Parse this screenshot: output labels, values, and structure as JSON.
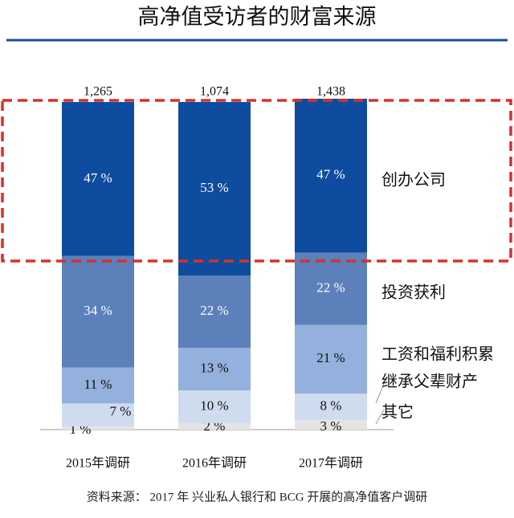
{
  "chart_data": {
    "type": "stacked_bar_100",
    "title": "高净值受访者的财富来源",
    "source": "资料来源： 2017 年 兴业私人银行和 BCG 开展的高净值客户调研",
    "categories": [
      "2015年调研",
      "2016年调研",
      "2017年调研"
    ],
    "totals": {
      "values": [
        1265,
        1074,
        1438
      ],
      "value_labels": [
        "1,265",
        "1,074",
        "1,438"
      ]
    },
    "ylim": [
      0,
      100
    ],
    "series": [
      {
        "name": "其它",
        "color": "#e4e4e4",
        "values": [
          1,
          2,
          3
        ],
        "value_labels": [
          "1 %",
          "2 %",
          "3 %"
        ]
      },
      {
        "name": "继承父辈财产",
        "color": "#cfdbef",
        "values": [
          7,
          10,
          8
        ],
        "value_labels": [
          "7 %",
          "10 %",
          "8 %"
        ]
      },
      {
        "name": "工资和福利积累",
        "color": "#94b0dc",
        "values": [
          11,
          13,
          21
        ],
        "value_labels": [
          "11 %",
          "13 %",
          "21 %"
        ]
      },
      {
        "name": "投资获利",
        "color": "#5b80ba",
        "values": [
          34,
          22,
          22
        ],
        "value_labels": [
          "34 %",
          "22 %",
          "22 %"
        ]
      },
      {
        "name": "创办公司",
        "color": "#0e4c9f",
        "values": [
          47,
          53,
          47
        ],
        "value_labels": [
          "47 %",
          "53 %",
          "47 %"
        ]
      }
    ]
  }
}
